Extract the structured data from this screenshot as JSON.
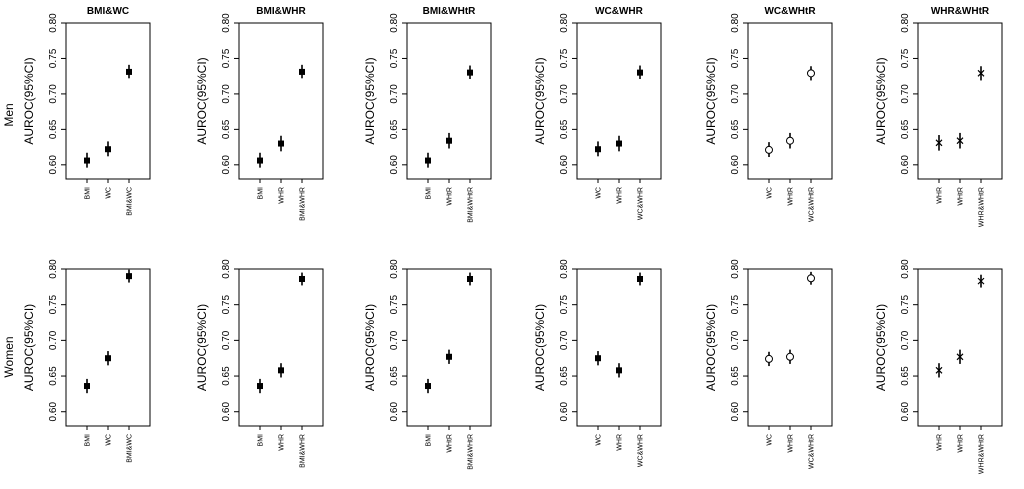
{
  "row_labels": [
    "Men",
    "Women"
  ],
  "chart_data": [
    {
      "type": "scatter",
      "title": "BMI&WC",
      "ylabel": "AUROC(95%CI)",
      "ylim": [
        0.58,
        0.8
      ],
      "yticks": [
        "0.60",
        "0.65",
        "0.70",
        "0.75",
        "0.80"
      ],
      "categories": [
        "BMI",
        "WC",
        "BMI&WC"
      ],
      "marker": "filled-square",
      "points": [
        {
          "y": 0.606,
          "lo": 0.596,
          "hi": 0.617
        },
        {
          "y": 0.622,
          "lo": 0.612,
          "hi": 0.633
        },
        {
          "y": 0.731,
          "lo": 0.722,
          "hi": 0.741
        }
      ]
    },
    {
      "type": "scatter",
      "title": "BMI&WHR",
      "ylabel": "AUROC(95%CI)",
      "ylim": [
        0.58,
        0.8
      ],
      "yticks": [
        "0.60",
        "0.65",
        "0.70",
        "0.75",
        "0.80"
      ],
      "categories": [
        "BMI",
        "WHR",
        "BMI&WHR"
      ],
      "marker": "filled-square",
      "points": [
        {
          "y": 0.606,
          "lo": 0.596,
          "hi": 0.617
        },
        {
          "y": 0.63,
          "lo": 0.619,
          "hi": 0.641
        },
        {
          "y": 0.731,
          "lo": 0.722,
          "hi": 0.741
        }
      ]
    },
    {
      "type": "scatter",
      "title": "BMI&WHtR",
      "ylabel": "AUROC(95%CI)",
      "ylim": [
        0.58,
        0.8
      ],
      "yticks": [
        "0.60",
        "0.65",
        "0.70",
        "0.75",
        "0.80"
      ],
      "categories": [
        "BMI",
        "WHtR",
        "BMI&WHtR"
      ],
      "marker": "filled-square",
      "points": [
        {
          "y": 0.606,
          "lo": 0.596,
          "hi": 0.617
        },
        {
          "y": 0.634,
          "lo": 0.623,
          "hi": 0.645
        },
        {
          "y": 0.73,
          "lo": 0.721,
          "hi": 0.74
        }
      ]
    },
    {
      "type": "scatter",
      "title": "WC&WHR",
      "ylabel": "AUROC(95%CI)",
      "ylim": [
        0.58,
        0.8
      ],
      "yticks": [
        "0.60",
        "0.65",
        "0.70",
        "0.75",
        "0.80"
      ],
      "categories": [
        "WC",
        "WHR",
        "WC&WHR"
      ],
      "marker": "filled-square",
      "points": [
        {
          "y": 0.622,
          "lo": 0.612,
          "hi": 0.633
        },
        {
          "y": 0.63,
          "lo": 0.619,
          "hi": 0.641
        },
        {
          "y": 0.73,
          "lo": 0.721,
          "hi": 0.74
        }
      ]
    },
    {
      "type": "scatter",
      "title": "WC&WHtR",
      "ylabel": "AUROC(95%CI)",
      "ylim": [
        0.58,
        0.8
      ],
      "yticks": [
        "0.60",
        "0.65",
        "0.70",
        "0.75",
        "0.80"
      ],
      "categories": [
        "WC",
        "WHtR",
        "WC&WHtR"
      ],
      "marker": "open-circle",
      "points": [
        {
          "y": 0.621,
          "lo": 0.611,
          "hi": 0.632
        },
        {
          "y": 0.634,
          "lo": 0.623,
          "hi": 0.645
        },
        {
          "y": 0.729,
          "lo": 0.719,
          "hi": 0.739
        }
      ]
    },
    {
      "type": "scatter",
      "title": "WHR&WHtR",
      "ylabel": "AUROC(95%CI)",
      "ylim": [
        0.58,
        0.8
      ],
      "yticks": [
        "0.60",
        "0.65",
        "0.70",
        "0.75",
        "0.80"
      ],
      "categories": [
        "WHR",
        "WHtR",
        "WHR&WHtR"
      ],
      "marker": "x",
      "points": [
        {
          "y": 0.631,
          "lo": 0.62,
          "hi": 0.642
        },
        {
          "y": 0.634,
          "lo": 0.623,
          "hi": 0.645
        },
        {
          "y": 0.729,
          "lo": 0.719,
          "hi": 0.739
        }
      ]
    },
    {
      "type": "scatter",
      "title": "",
      "ylabel": "AUROC(95%CI)",
      "ylim": [
        0.58,
        0.8
      ],
      "yticks": [
        "0.60",
        "0.65",
        "0.70",
        "0.75",
        "0.80"
      ],
      "categories": [
        "BMI",
        "WC",
        "BMI&WC"
      ],
      "marker": "filled-square",
      "points": [
        {
          "y": 0.636,
          "lo": 0.626,
          "hi": 0.646
        },
        {
          "y": 0.675,
          "lo": 0.665,
          "hi": 0.685
        },
        {
          "y": 0.79,
          "lo": 0.781,
          "hi": 0.799
        }
      ]
    },
    {
      "type": "scatter",
      "title": "",
      "ylabel": "AUROC(95%CI)",
      "ylim": [
        0.58,
        0.8
      ],
      "yticks": [
        "0.60",
        "0.65",
        "0.70",
        "0.75",
        "0.80"
      ],
      "categories": [
        "BMI",
        "WHR",
        "BMI&WHR"
      ],
      "marker": "filled-square",
      "points": [
        {
          "y": 0.636,
          "lo": 0.626,
          "hi": 0.646
        },
        {
          "y": 0.658,
          "lo": 0.648,
          "hi": 0.668
        },
        {
          "y": 0.786,
          "lo": 0.777,
          "hi": 0.795
        }
      ]
    },
    {
      "type": "scatter",
      "title": "",
      "ylabel": "AUROC(95%CI)",
      "ylim": [
        0.58,
        0.8
      ],
      "yticks": [
        "0.60",
        "0.65",
        "0.70",
        "0.75",
        "0.80"
      ],
      "categories": [
        "BMI",
        "WHtR",
        "BMI&WHtR"
      ],
      "marker": "filled-square",
      "points": [
        {
          "y": 0.636,
          "lo": 0.626,
          "hi": 0.646
        },
        {
          "y": 0.677,
          "lo": 0.667,
          "hi": 0.687
        },
        {
          "y": 0.786,
          "lo": 0.777,
          "hi": 0.795
        }
      ]
    },
    {
      "type": "scatter",
      "title": "",
      "ylabel": "AUROC(95%CI)",
      "ylim": [
        0.58,
        0.8
      ],
      "yticks": [
        "0.60",
        "0.65",
        "0.70",
        "0.75",
        "0.80"
      ],
      "categories": [
        "WC",
        "WHR",
        "WC&WHR"
      ],
      "marker": "filled-square",
      "points": [
        {
          "y": 0.675,
          "lo": 0.665,
          "hi": 0.685
        },
        {
          "y": 0.658,
          "lo": 0.648,
          "hi": 0.668
        },
        {
          "y": 0.786,
          "lo": 0.777,
          "hi": 0.795
        }
      ]
    },
    {
      "type": "scatter",
      "title": "",
      "ylabel": "AUROC(95%CI)",
      "ylim": [
        0.58,
        0.8
      ],
      "yticks": [
        "0.60",
        "0.65",
        "0.70",
        "0.75",
        "0.80"
      ],
      "categories": [
        "WC",
        "WHtR",
        "WC&WHtR"
      ],
      "marker": "open-circle",
      "points": [
        {
          "y": 0.674,
          "lo": 0.664,
          "hi": 0.684
        },
        {
          "y": 0.677,
          "lo": 0.667,
          "hi": 0.687
        },
        {
          "y": 0.787,
          "lo": 0.778,
          "hi": 0.796
        }
      ]
    },
    {
      "type": "scatter",
      "title": "",
      "ylabel": "AUROC(95%CI)",
      "ylim": [
        0.58,
        0.8
      ],
      "yticks": [
        "0.60",
        "0.65",
        "0.70",
        "0.75",
        "0.80"
      ],
      "categories": [
        "WHR",
        "WHtR",
        "WHR&WHtR"
      ],
      "marker": "x",
      "points": [
        {
          "y": 0.658,
          "lo": 0.648,
          "hi": 0.668
        },
        {
          "y": 0.677,
          "lo": 0.667,
          "hi": 0.687
        },
        {
          "y": 0.783,
          "lo": 0.774,
          "hi": 0.792
        }
      ]
    }
  ]
}
